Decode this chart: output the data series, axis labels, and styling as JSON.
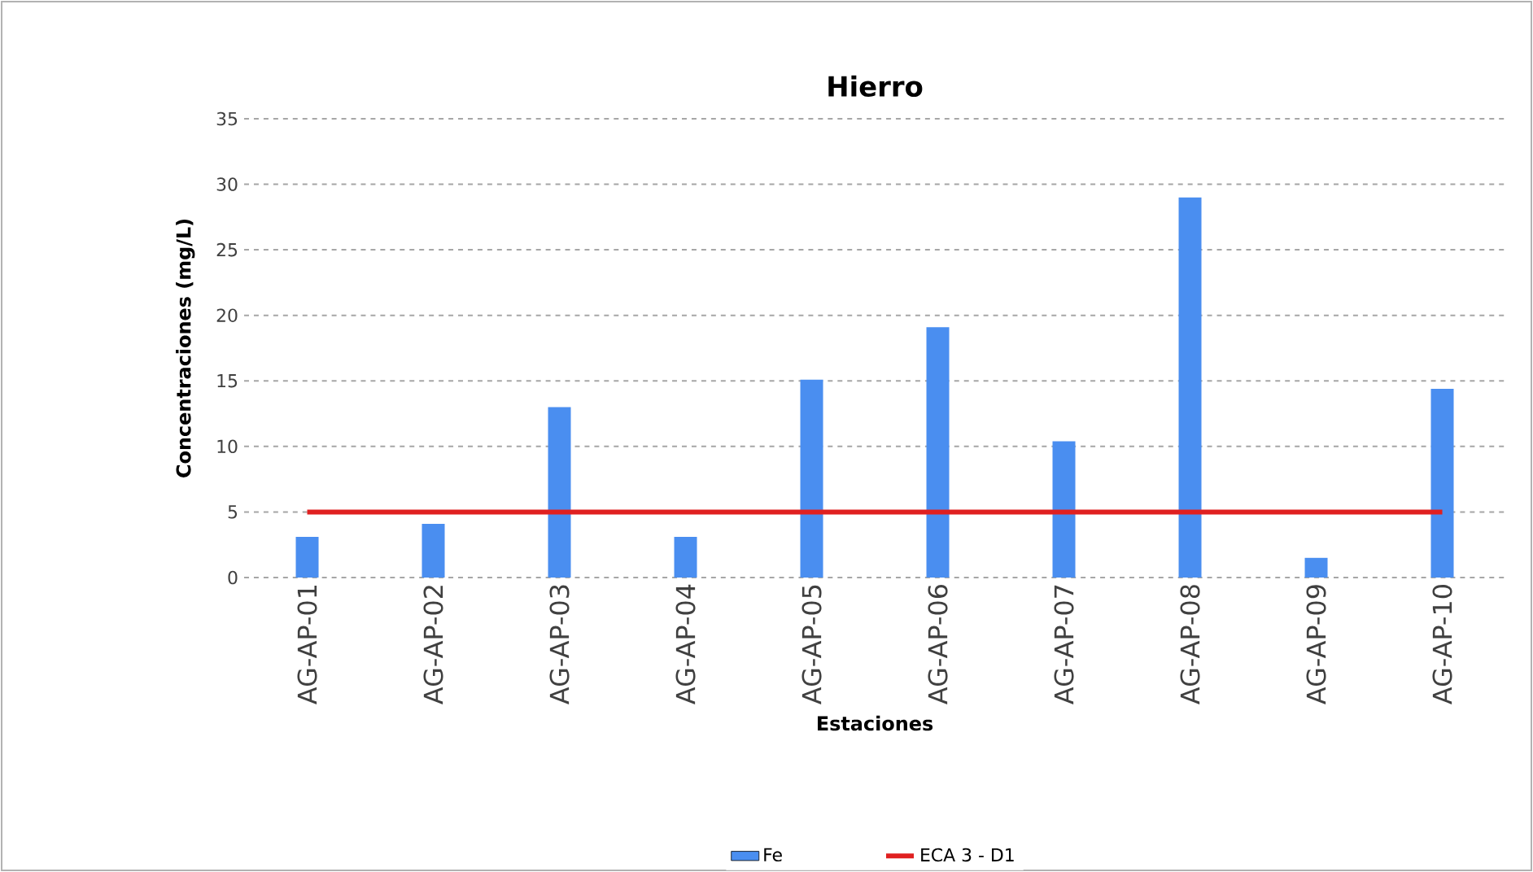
{
  "chart_data": {
    "type": "bar",
    "title": "Hierro",
    "xlabel": "Estaciones",
    "ylabel": "Concentraciones (mg/L)",
    "categories": [
      "AG-AP-01",
      "AG-AP-02",
      "AG-AP-03",
      "AG-AP-04",
      "AG-AP-05",
      "AG-AP-06",
      "AG-AP-07",
      "AG-AP-08",
      "AG-AP-09",
      "AG-AP-10"
    ],
    "series": [
      {
        "name": "Fe",
        "color": "#4a8ef0",
        "values": [
          3.1,
          4.1,
          13.0,
          3.1,
          15.1,
          19.1,
          10.4,
          29.0,
          1.5,
          14.4
        ]
      },
      {
        "name": "ECA 3 - D1",
        "type": "line",
        "color": "#e02020",
        "line_style": "solid",
        "marker": "none",
        "values": [
          5,
          5,
          5,
          5,
          5,
          5,
          5,
          5,
          5,
          5
        ]
      }
    ],
    "ylim": [
      0,
      35
    ],
    "yticks": [
      0,
      5,
      10,
      15,
      20,
      25,
      30,
      35
    ],
    "grid": "y",
    "legend": "bottom"
  }
}
